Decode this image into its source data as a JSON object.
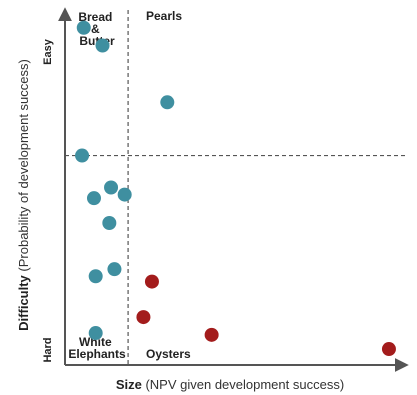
{
  "chart_data": {
    "type": "scatter",
    "title": "",
    "xlabel": {
      "bold": "Size",
      "rest": " (NPV given development success)"
    },
    "ylabel": {
      "bold": "Difficulty",
      "rest": " (Probability of development success)"
    },
    "y_tick_labels": {
      "top": "Easy",
      "bottom": "Hard"
    },
    "quadrant_labels": {
      "top_left": [
        "Bread",
        "&",
        "Butter"
      ],
      "top_right": [
        "Pearls"
      ],
      "bottom_left": [
        "White",
        "Elephants"
      ],
      "bottom_right": [
        "Oysters"
      ]
    },
    "xlim": [
      0,
      100
    ],
    "ylim": [
      0,
      100
    ],
    "x_divider": 18.5,
    "y_divider": 59,
    "grid": false,
    "legend": "none",
    "series": [
      {
        "color": "#3f8fa0",
        "points": [
          {
            "x": 5.5,
            "y": 95
          },
          {
            "x": 11,
            "y": 90
          },
          {
            "x": 30,
            "y": 74
          },
          {
            "x": 5,
            "y": 59
          },
          {
            "x": 13.5,
            "y": 50
          },
          {
            "x": 8.5,
            "y": 47
          },
          {
            "x": 17.5,
            "y": 48
          },
          {
            "x": 13,
            "y": 40
          },
          {
            "x": 14.5,
            "y": 27
          },
          {
            "x": 9,
            "y": 25
          },
          {
            "x": 9,
            "y": 9
          }
        ]
      },
      {
        "color": "#a31c1c",
        "points": [
          {
            "x": 25.5,
            "y": 23.5
          },
          {
            "x": 23,
            "y": 13.5
          },
          {
            "x": 43,
            "y": 8.5
          },
          {
            "x": 95,
            "y": 4.5
          }
        ]
      }
    ]
  }
}
